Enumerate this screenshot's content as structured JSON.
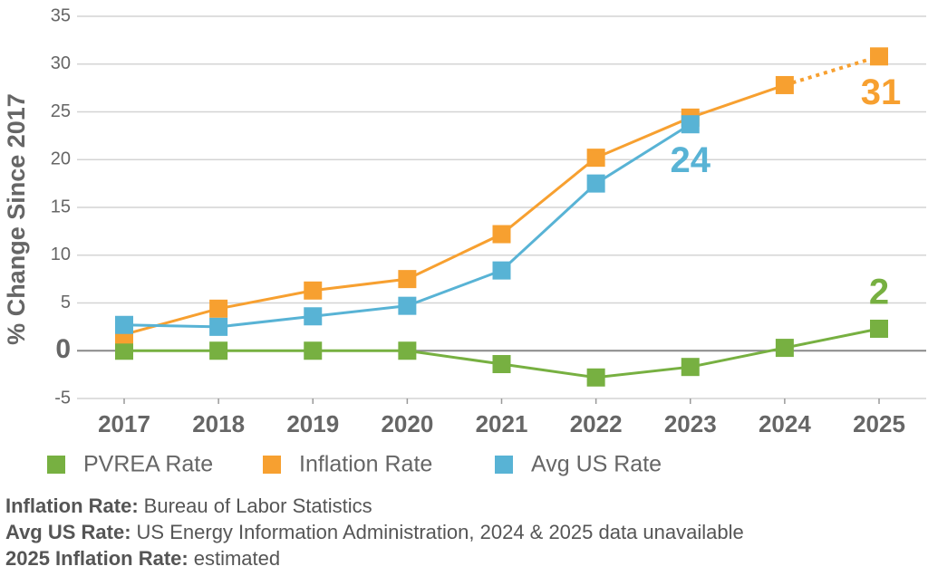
{
  "chart_data": {
    "type": "line",
    "y_label": "% Change Since 2017",
    "categories": [
      "2017",
      "2018",
      "2019",
      "2020",
      "2021",
      "2022",
      "2023",
      "2024",
      "2025"
    ],
    "series": [
      {
        "name": "PVREA Rate",
        "color": "#77b041",
        "values": [
          0,
          0,
          0,
          0,
          -1.4,
          -2.8,
          -1.7,
          0.3,
          2.3
        ],
        "value_labels": [
          null,
          null,
          null,
          null,
          null,
          null,
          null,
          null,
          "2"
        ]
      },
      {
        "name": "Inflation Rate",
        "color": "#f7a030",
        "values": [
          1.7,
          4.4,
          6.3,
          7.5,
          12.2,
          20.2,
          24.4,
          27.8,
          30.8
        ],
        "value_labels": [
          null,
          null,
          null,
          null,
          null,
          null,
          null,
          null,
          "31"
        ],
        "dotted_last_segment": true
      },
      {
        "name": "Avg US Rate",
        "color": "#58b3d5",
        "values": [
          2.7,
          2.5,
          3.6,
          4.7,
          8.4,
          17.5,
          23.7,
          null,
          null
        ],
        "value_labels": [
          null,
          null,
          null,
          null,
          null,
          null,
          "24",
          null,
          null
        ]
      }
    ],
    "ylim": [
      -5,
      35
    ],
    "yticks": [
      -5,
      0,
      5,
      10,
      15,
      20,
      25,
      30,
      35
    ],
    "grid": true,
    "notes": [
      {
        "label": "Inflation Rate:",
        "text": "Bureau of Labor Statistics"
      },
      {
        "label": "Avg US Rate:",
        "text": "US Energy Information Administration, 2024 & 2025 data unavailable"
      },
      {
        "label": "2025 Inflation Rate:",
        "text": "estimated"
      }
    ]
  }
}
